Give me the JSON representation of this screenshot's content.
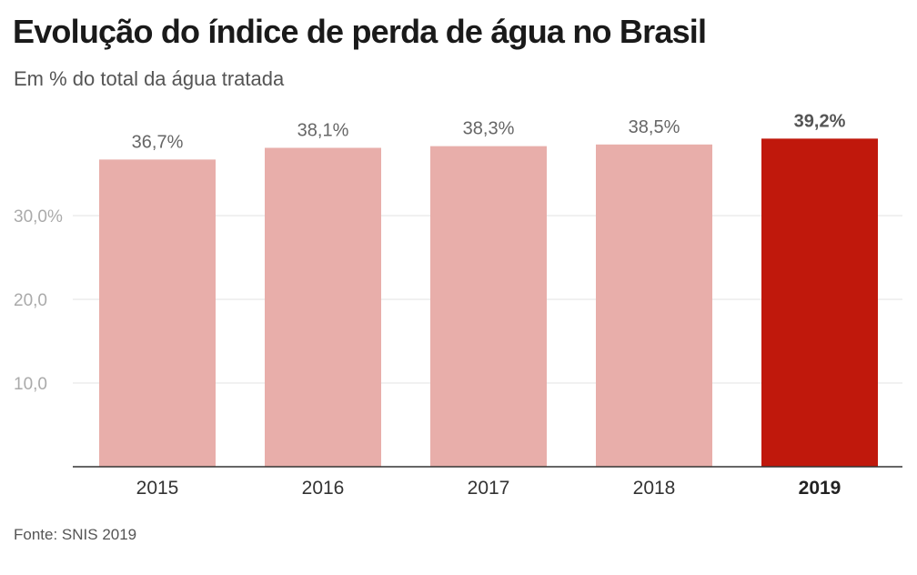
{
  "header": {
    "title": "Evolução do índice de perda de água no Brasil",
    "subtitle": "Em % do total da água tratada"
  },
  "footer": {
    "source": "Fonte: SNIS 2019"
  },
  "colors": {
    "bar": "#e8aeaa",
    "bar_highlight": "#c0180c",
    "grid": "#e3e3e3",
    "axis": "#333333"
  },
  "chart_data": {
    "type": "bar",
    "title": "Evolução do índice de perda de água no Brasil",
    "subtitle": "Em % do total da água tratada",
    "xlabel": "",
    "ylabel": "",
    "categories": [
      "2015",
      "2016",
      "2017",
      "2018",
      "2019"
    ],
    "values": [
      36.7,
      38.1,
      38.3,
      38.5,
      39.2
    ],
    "data_labels": [
      "36,7%",
      "38,1%",
      "38,3%",
      "38,5%",
      "39,2%"
    ],
    "highlight_index": 4,
    "ylim": [
      0,
      40
    ],
    "yticks": [
      10,
      20,
      30
    ],
    "ytick_labels": [
      "10,0",
      "20,0",
      "30,0%"
    ],
    "grid": true,
    "legend": "none"
  }
}
